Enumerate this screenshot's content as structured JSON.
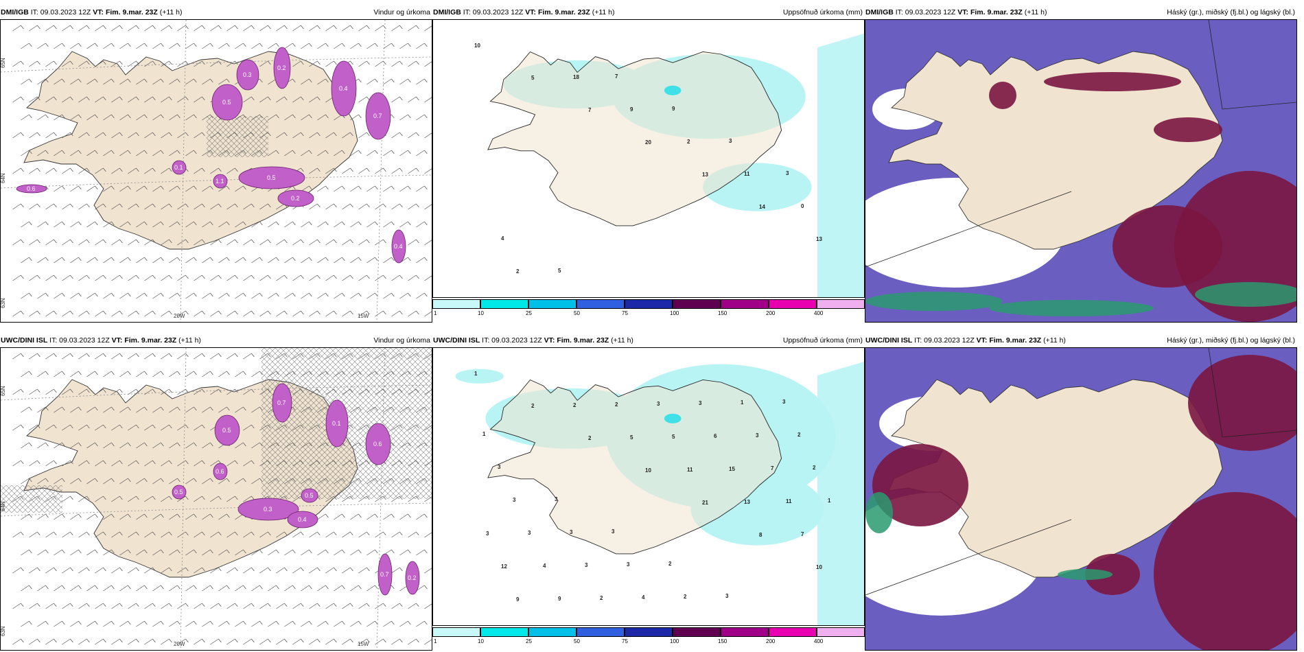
{
  "rows": [
    {
      "model": "DMI/IGB",
      "panels": [
        {
          "id": "r1p1",
          "model": "DMI/IGB",
          "it": "IT: 09.03.2023 12Z",
          "vt_label": "VT:",
          "vt": "Fim. 9.mar. 23Z",
          "lead": "(+11 h)",
          "title": "Vindur og úrkoma",
          "labels": [
            "0.5",
            "0.3",
            "0.5",
            "0.2",
            "0.4",
            "0.7",
            "0.1",
            "1.1",
            "0.6",
            "0.4",
            "0.2"
          ],
          "axis_labels": [
            "65N",
            "64N",
            "63N",
            "20W",
            "15W"
          ]
        },
        {
          "id": "r1p2",
          "model": "DMI/IGB",
          "it": "IT: 09.03.2023 12Z",
          "vt_label": "VT:",
          "vt": "Fim. 9.mar. 23Z",
          "lead": "(+11 h)",
          "title": "Uppsöfnuð úrkoma (mm)",
          "numbers": [
            "10",
            "5",
            "7",
            "20",
            "13",
            "14",
            "13",
            "2",
            "18",
            "9",
            "2",
            "11",
            "0",
            "4",
            "5",
            "7",
            "9",
            "3",
            "3"
          ]
        },
        {
          "id": "r1p3",
          "model": "DMI/IGB",
          "it": "IT: 09.03.2023 12Z",
          "vt_label": "VT:",
          "vt": "Fim. 9.mar. 23Z",
          "lead": "(+11 h)",
          "title": "Háský (gr.), miðský (fj.bl.) og lágský (bl.)"
        }
      ]
    },
    {
      "model": "UWC/DINI ISL",
      "panels": [
        {
          "id": "r2p1",
          "model": "UWC/DINI ISL",
          "it": "IT: 09.03.2023 12Z",
          "vt_label": "VT:",
          "vt": "Fim. 9.mar. 23Z",
          "lead": "(+11 h)",
          "title": "Vindur og úrkoma",
          "labels": [
            "0.5",
            "0.7",
            "0.1",
            "0.6",
            "0.3",
            "0.4",
            "0.5",
            "0.6",
            "0.7",
            "0.2",
            "0.5"
          ],
          "axis_labels": [
            "65N",
            "64N",
            "63N",
            "20W",
            "15W"
          ]
        },
        {
          "id": "r2p2",
          "model": "UWC/DINI ISL",
          "it": "IT: 09.03.2023 12Z",
          "vt_label": "VT:",
          "vt": "Fim. 9.mar. 23Z",
          "lead": "(+11 h)",
          "title": "Uppsöfnuð úrkoma (mm)",
          "numbers": [
            "1",
            "2",
            "2",
            "10",
            "21",
            "8",
            "10",
            "9",
            "2",
            "5",
            "11",
            "13",
            "7",
            "12",
            "9",
            "2",
            "5",
            "15",
            "11",
            "3",
            "4",
            "2",
            "3",
            "6",
            "7",
            "1",
            "3",
            "3",
            "4",
            "3",
            "3",
            "2",
            "3",
            "3",
            "3",
            "2",
            "1",
            "2",
            "3",
            "3",
            "3",
            "2",
            "3",
            "3",
            "1"
          ]
        },
        {
          "id": "r2p3",
          "model": "UWC/DINI ISL",
          "it": "IT: 09.03.2023 12Z",
          "vt_label": "VT:",
          "vt": "Fim. 9.mar. 23Z",
          "lead": "(+11 h)",
          "title": "Háský (gr.), miðský (fj.bl.) og lágský (bl.)"
        }
      ]
    }
  ],
  "colorbar": {
    "labels": [
      "1",
      "10",
      "25",
      "50",
      "75",
      "100",
      "150",
      "200",
      "400"
    ],
    "colors": [
      "#c8f8f8",
      "#00e8e8",
      "#00c0e8",
      "#3060e0",
      "#1c28a8",
      "#600050",
      "#a00088",
      "#e800b0",
      "#f0b0f0"
    ]
  },
  "colors": {
    "land": "#f0e3d0",
    "precip_light": "#b8f4f4",
    "precip_mid": "#40e0e8",
    "magenta": "#c060c8",
    "high_cloud": "#6a5fc0",
    "mid_cloud": "#7a1640",
    "low_cloud": "#2a9a70",
    "cloud_white": "#ffffff"
  }
}
